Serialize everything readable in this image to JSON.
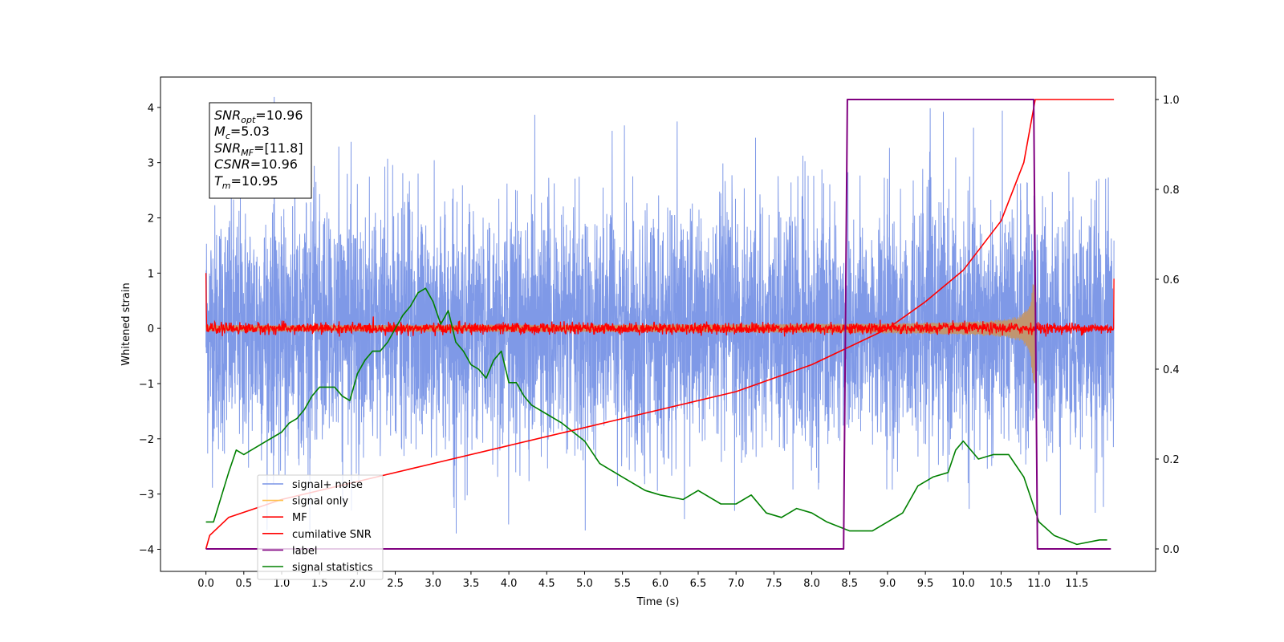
{
  "chart_data": {
    "type": "line",
    "title": "",
    "xlabel": "Time (s)",
    "ylabel": "Whitened strain",
    "xlim": [
      -0.6,
      12.54
    ],
    "ylim": [
      -4.4,
      4.55
    ],
    "y2lim": [
      -0.05,
      1.05
    ],
    "x_ticks": [
      "0.0",
      "0.5",
      "1.0",
      "1.5",
      "2.0",
      "2.5",
      "3.0",
      "3.5",
      "4.0",
      "4.5",
      "5.0",
      "5.5",
      "6.0",
      "6.5",
      "7.0",
      "7.5",
      "8.0",
      "8.5",
      "9.0",
      "9.5",
      "10.0",
      "10.5",
      "11.0",
      "11.5"
    ],
    "y_ticks": [
      "4",
      "3",
      "2",
      "1",
      "0",
      "−1",
      "−2",
      "−3",
      "−4"
    ],
    "y2_ticks": [
      "1.0",
      "0.8",
      "0.6",
      "0.4",
      "0.2",
      "0.0"
    ],
    "grid": false,
    "legend_position": "lower-left",
    "annotation": {
      "snr_opt": {
        "sym": "SNR",
        "sub": "opt",
        "value": "=10.96"
      },
      "mc": {
        "sym": "M",
        "sub": "c",
        "value": "=5.03"
      },
      "snr_mf": {
        "sym": "SNR",
        "sub": "MF",
        "value": "=[11.8]"
      },
      "csnr": {
        "sym": "CSNR",
        "value": "=10.96"
      },
      "tm": {
        "sym": "T",
        "sub": "m",
        "value": "=10.95"
      }
    },
    "series": [
      {
        "name": "signal+ noise",
        "color": "#7893e6",
        "axis": "left",
        "description": "whitened strain noise, roughly uniform amplitude",
        "x_range": [
          0.0,
          11.99
        ],
        "y_range": [
          -3.8,
          4.2
        ]
      },
      {
        "name": "signal only",
        "color": "#ffc04d",
        "axis": "left",
        "description": "chirp growing in amplitude, ending at 10.95",
        "x_range": [
          0.0,
          10.95
        ],
        "y_range": [
          -1.1,
          0.95
        ]
      },
      {
        "name": "MF",
        "color": "#ff0000",
        "axis": "left",
        "description": "matched filter output, small oscillation around 0",
        "x_range": [
          0.0,
          11.99
        ],
        "y_range": [
          -0.15,
          1.0
        ]
      },
      {
        "name": "cumilative SNR",
        "color": "#ff0000",
        "axis": "right",
        "x": [
          0.0,
          0.05,
          0.3,
          1.0,
          2.0,
          3.0,
          4.0,
          5.0,
          6.0,
          7.0,
          8.0,
          8.5,
          9.0,
          9.5,
          10.0,
          10.5,
          10.8,
          10.95,
          11.99
        ],
        "y": [
          0.0,
          0.03,
          0.07,
          0.11,
          0.15,
          0.19,
          0.23,
          0.27,
          0.31,
          0.35,
          0.41,
          0.45,
          0.49,
          0.55,
          0.62,
          0.73,
          0.86,
          1.0,
          1.0
        ]
      },
      {
        "name": "label",
        "color": "#800080",
        "axis": "right",
        "x": [
          0.0,
          8.42,
          8.47,
          10.93,
          10.98,
          11.95
        ],
        "y": [
          0.0,
          0.0,
          1.0,
          1.0,
          0.0,
          0.0
        ]
      },
      {
        "name": "signal statistics",
        "color": "#008000",
        "axis": "right",
        "x": [
          0.0,
          0.1,
          0.3,
          0.4,
          0.5,
          0.6,
          0.7,
          0.8,
          0.9,
          1.0,
          1.1,
          1.2,
          1.3,
          1.4,
          1.5,
          1.6,
          1.7,
          1.8,
          1.9,
          2.0,
          2.1,
          2.2,
          2.3,
          2.4,
          2.5,
          2.6,
          2.7,
          2.8,
          2.9,
          3.0,
          3.1,
          3.2,
          3.3,
          3.4,
          3.5,
          3.6,
          3.7,
          3.8,
          3.9,
          4.0,
          4.1,
          4.2,
          4.3,
          4.5,
          4.7,
          5.0,
          5.2,
          5.5,
          5.8,
          6.0,
          6.3,
          6.5,
          6.8,
          7.0,
          7.2,
          7.4,
          7.6,
          7.8,
          8.0,
          8.2,
          8.5,
          8.8,
          9.0,
          9.2,
          9.4,
          9.6,
          9.8,
          9.9,
          10.0,
          10.2,
          10.4,
          10.6,
          10.8,
          11.0,
          11.2,
          11.5,
          11.8,
          11.9
        ],
        "y": [
          0.06,
          0.06,
          0.17,
          0.22,
          0.21,
          0.22,
          0.23,
          0.24,
          0.25,
          0.26,
          0.28,
          0.29,
          0.31,
          0.34,
          0.36,
          0.36,
          0.36,
          0.34,
          0.33,
          0.39,
          0.42,
          0.44,
          0.44,
          0.46,
          0.49,
          0.52,
          0.54,
          0.57,
          0.58,
          0.55,
          0.5,
          0.53,
          0.46,
          0.44,
          0.41,
          0.4,
          0.38,
          0.42,
          0.44,
          0.37,
          0.37,
          0.34,
          0.32,
          0.3,
          0.28,
          0.24,
          0.19,
          0.16,
          0.13,
          0.12,
          0.11,
          0.13,
          0.1,
          0.1,
          0.12,
          0.08,
          0.07,
          0.09,
          0.08,
          0.06,
          0.04,
          0.04,
          0.06,
          0.08,
          0.14,
          0.16,
          0.17,
          0.22,
          0.24,
          0.2,
          0.21,
          0.21,
          0.16,
          0.06,
          0.03,
          0.01,
          0.02,
          0.02
        ]
      }
    ]
  }
}
